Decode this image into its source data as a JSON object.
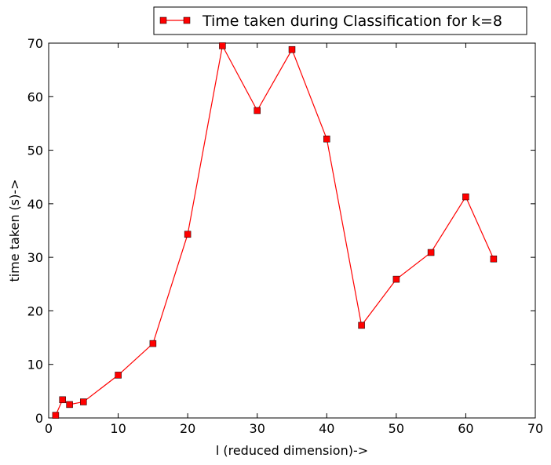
{
  "chart_data": {
    "type": "line",
    "title": "",
    "xlabel": "l (reduced dimension)->",
    "ylabel": "time taken (s)->",
    "xlim": [
      0,
      70
    ],
    "ylim": [
      0,
      70
    ],
    "xticks": [
      0,
      10,
      20,
      30,
      40,
      50,
      60,
      70
    ],
    "yticks": [
      0,
      10,
      20,
      30,
      40,
      50,
      60,
      70
    ],
    "grid": false,
    "legend_position": "top-right, outside above plot",
    "series": [
      {
        "name": "Time taken during Classification for k=8",
        "color": "#ff0000",
        "marker": "square",
        "x": [
          1,
          2,
          3,
          5,
          10,
          15,
          20,
          25,
          30,
          35,
          40,
          45,
          50,
          55,
          60,
          64
        ],
        "y": [
          0.5,
          3.4,
          2.5,
          3.0,
          8.0,
          13.9,
          34.3,
          69.5,
          57.4,
          68.8,
          52.1,
          17.3,
          25.9,
          30.9,
          41.3,
          29.7
        ]
      }
    ]
  }
}
